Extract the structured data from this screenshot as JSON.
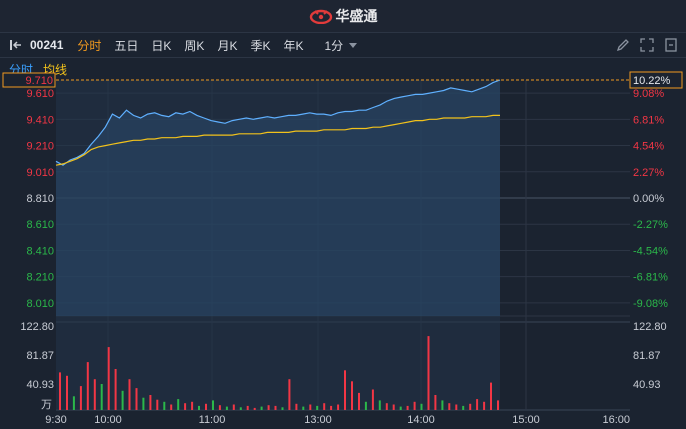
{
  "header": {
    "title": "华盛通"
  },
  "toolbar": {
    "code": "00241",
    "tabs": [
      "分时",
      "五日",
      "日K",
      "周K",
      "月K",
      "季K",
      "年K"
    ],
    "active_tab": "分时",
    "period": "1分"
  },
  "subbar": {
    "label1": "分时",
    "label2": "均线"
  },
  "colors": {
    "background": "#1b2330",
    "up": "#f23645",
    "down": "#2bb84a",
    "price_line": "#5fb0ff",
    "avg_line": "#f2c21b",
    "accent": "#f29a1f",
    "grid": "#3a4556"
  },
  "chart_data": {
    "type": "line",
    "ticks_left": [
      "9.610",
      "9.410",
      "9.210",
      "9.010",
      "8.810",
      "8.610",
      "8.410",
      "8.210",
      "8.010"
    ],
    "ticks_right": [
      "9.08%",
      "6.81%",
      "4.54%",
      "2.27%",
      "0.00%",
      "-2.27%",
      "-4.54%",
      "-6.81%",
      "-9.08%"
    ],
    "current_price": "9.710",
    "current_pct": "10.22%",
    "prev_close": 8.81,
    "ylim": [
      7.91,
      9.71
    ],
    "volume_ticks": [
      "122.80",
      "81.87",
      "40.93"
    ],
    "volume_unit": "万",
    "volume_max": 122.8,
    "x_labels": [
      "9:30",
      "10:00",
      "11:00",
      "13:00",
      "14:00",
      "15:00",
      "16:00"
    ],
    "price": [
      9.09,
      9.06,
      9.1,
      9.12,
      9.15,
      9.22,
      9.28,
      9.35,
      9.45,
      9.42,
      9.48,
      9.44,
      9.42,
      9.45,
      9.46,
      9.44,
      9.43,
      9.46,
      9.45,
      9.47,
      9.44,
      9.42,
      9.4,
      9.39,
      9.38,
      9.4,
      9.41,
      9.42,
      9.41,
      9.42,
      9.43,
      9.42,
      9.43,
      9.44,
      9.44,
      9.45,
      9.46,
      9.45,
      9.45,
      9.44,
      9.46,
      9.47,
      9.47,
      9.48,
      9.48,
      9.5,
      9.52,
      9.55,
      9.57,
      9.58,
      9.59,
      9.6,
      9.6,
      9.61,
      9.62,
      9.63,
      9.65,
      9.64,
      9.63,
      9.62,
      9.64,
      9.66,
      9.69,
      9.71
    ],
    "avg": [
      9.06,
      9.07,
      9.09,
      9.11,
      9.14,
      9.18,
      9.2,
      9.21,
      9.22,
      9.23,
      9.24,
      9.25,
      9.25,
      9.26,
      9.26,
      9.27,
      9.27,
      9.27,
      9.28,
      9.28,
      9.28,
      9.29,
      9.29,
      9.29,
      9.29,
      9.29,
      9.3,
      9.3,
      9.3,
      9.3,
      9.31,
      9.31,
      9.31,
      9.31,
      9.32,
      9.32,
      9.32,
      9.32,
      9.33,
      9.33,
      9.33,
      9.33,
      9.34,
      9.34,
      9.34,
      9.35,
      9.35,
      9.36,
      9.37,
      9.38,
      9.39,
      9.4,
      9.4,
      9.41,
      9.41,
      9.42,
      9.42,
      9.42,
      9.42,
      9.43,
      9.43,
      9.43,
      9.44,
      9.44
    ],
    "volume": [
      {
        "v": 55,
        "c": "up"
      },
      {
        "v": 50,
        "c": "up"
      },
      {
        "v": 20,
        "c": "down"
      },
      {
        "v": 35,
        "c": "up"
      },
      {
        "v": 70,
        "c": "up"
      },
      {
        "v": 45,
        "c": "up"
      },
      {
        "v": 38,
        "c": "down"
      },
      {
        "v": 92,
        "c": "up"
      },
      {
        "v": 60,
        "c": "up"
      },
      {
        "v": 28,
        "c": "down"
      },
      {
        "v": 45,
        "c": "up"
      },
      {
        "v": 32,
        "c": "up"
      },
      {
        "v": 18,
        "c": "down"
      },
      {
        "v": 22,
        "c": "up"
      },
      {
        "v": 15,
        "c": "up"
      },
      {
        "v": 12,
        "c": "down"
      },
      {
        "v": 8,
        "c": "up"
      },
      {
        "v": 16,
        "c": "down"
      },
      {
        "v": 10,
        "c": "up"
      },
      {
        "v": 12,
        "c": "up"
      },
      {
        "v": 6,
        "c": "down"
      },
      {
        "v": 9,
        "c": "up"
      },
      {
        "v": 14,
        "c": "down"
      },
      {
        "v": 7,
        "c": "up"
      },
      {
        "v": 5,
        "c": "down"
      },
      {
        "v": 8,
        "c": "up"
      },
      {
        "v": 4,
        "c": "down"
      },
      {
        "v": 6,
        "c": "up"
      },
      {
        "v": 3,
        "c": "up"
      },
      {
        "v": 5,
        "c": "down"
      },
      {
        "v": 7,
        "c": "up"
      },
      {
        "v": 6,
        "c": "up"
      },
      {
        "v": 4,
        "c": "down"
      },
      {
        "v": 45,
        "c": "up"
      },
      {
        "v": 9,
        "c": "up"
      },
      {
        "v": 5,
        "c": "down"
      },
      {
        "v": 8,
        "c": "up"
      },
      {
        "v": 6,
        "c": "down"
      },
      {
        "v": 10,
        "c": "up"
      },
      {
        "v": 6,
        "c": "up"
      },
      {
        "v": 8,
        "c": "up"
      },
      {
        "v": 58,
        "c": "up"
      },
      {
        "v": 42,
        "c": "up"
      },
      {
        "v": 25,
        "c": "up"
      },
      {
        "v": 12,
        "c": "down"
      },
      {
        "v": 30,
        "c": "up"
      },
      {
        "v": 14,
        "c": "down"
      },
      {
        "v": 10,
        "c": "up"
      },
      {
        "v": 8,
        "c": "up"
      },
      {
        "v": 5,
        "c": "down"
      },
      {
        "v": 6,
        "c": "up"
      },
      {
        "v": 12,
        "c": "up"
      },
      {
        "v": 9,
        "c": "down"
      },
      {
        "v": 108,
        "c": "up"
      },
      {
        "v": 22,
        "c": "up"
      },
      {
        "v": 14,
        "c": "down"
      },
      {
        "v": 10,
        "c": "up"
      },
      {
        "v": 8,
        "c": "up"
      },
      {
        "v": 6,
        "c": "down"
      },
      {
        "v": 9,
        "c": "up"
      },
      {
        "v": 16,
        "c": "up"
      },
      {
        "v": 12,
        "c": "up"
      },
      {
        "v": 40,
        "c": "up"
      },
      {
        "v": 14,
        "c": "up"
      }
    ]
  }
}
